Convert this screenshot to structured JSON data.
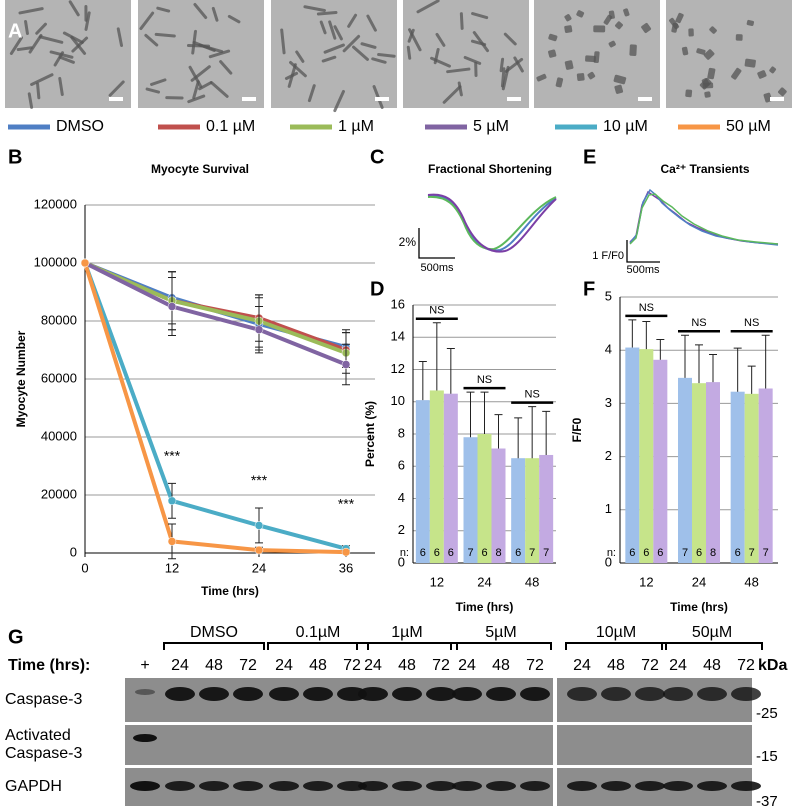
{
  "panel_labels": [
    "A",
    "B",
    "C",
    "D",
    "E",
    "F",
    "G"
  ],
  "chart_data": [
    {
      "type": "line",
      "title": "Myocyte Survival",
      "xlabel": "Time (hrs)",
      "ylabel": "Myocyte Number",
      "x": [
        0,
        12,
        24,
        36
      ],
      "xlim": [
        0,
        40
      ],
      "xticks": [
        0,
        12,
        24,
        36
      ],
      "ylim": [
        0,
        120000
      ],
      "yticks": [
        0,
        20000,
        40000,
        60000,
        80000,
        100000,
        120000
      ],
      "grid": true,
      "significance": [
        null,
        "***",
        "***",
        "***"
      ],
      "series": [
        {
          "name": "DMSO",
          "color": "#4f7fc4",
          "values": [
            100000,
            88000,
            79000,
            71000
          ],
          "errors": [
            0,
            9000,
            9000,
            6000
          ]
        },
        {
          "name": "0.1 µM",
          "color": "#c0504d",
          "values": [
            100000,
            87000,
            81000,
            70000
          ],
          "errors": [
            0,
            10000,
            8000,
            6000
          ]
        },
        {
          "name": "1 µM",
          "color": "#9bbb59",
          "values": [
            100000,
            87000,
            80000,
            69000
          ],
          "errors": [
            0,
            10000,
            9000,
            7000
          ]
        },
        {
          "name": "5 µM",
          "color": "#8064a2",
          "values": [
            100000,
            85000,
            77000,
            65000
          ],
          "errors": [
            0,
            10000,
            8000,
            7000
          ]
        },
        {
          "name": "10 µM",
          "color": "#4bacc6",
          "values": [
            100000,
            18000,
            9500,
            1500
          ],
          "errors": [
            0,
            6000,
            6000,
            1000
          ]
        },
        {
          "name": "50 µM",
          "color": "#f79646",
          "values": [
            100000,
            4000,
            1000,
            300
          ],
          "errors": [
            0,
            6000,
            1000,
            500
          ]
        }
      ]
    },
    {
      "type": "bar",
      "xlabel": "Time (hrs)",
      "ylabel": "Percent (%)",
      "n_label": "n:",
      "categories": [
        "12",
        "24",
        "48"
      ],
      "ylim": [
        0,
        16
      ],
      "yticks": [
        0,
        2,
        4,
        6,
        8,
        10,
        12,
        14,
        16
      ],
      "grid": true,
      "significance": [
        "NS",
        "NS",
        "NS"
      ],
      "series": [
        {
          "color": "#9fc0ea",
          "values": [
            10.1,
            7.8,
            6.5
          ],
          "errors": [
            2.4,
            2.8,
            2.5
          ],
          "n": [
            6,
            7,
            6
          ]
        },
        {
          "color": "#c6e48a",
          "values": [
            10.7,
            8.0,
            6.5
          ],
          "errors": [
            4.2,
            2.6,
            3.2
          ],
          "n": [
            6,
            6,
            7
          ]
        },
        {
          "color": "#c3aae2",
          "values": [
            10.5,
            7.1,
            6.7
          ],
          "errors": [
            2.8,
            2.1,
            2.7
          ],
          "n": [
            6,
            8,
            7
          ]
        }
      ]
    },
    {
      "type": "bar",
      "xlabel": "Time (hrs)",
      "ylabel": "F/F0",
      "n_label": "n:",
      "categories": [
        "12",
        "24",
        "48"
      ],
      "ylim": [
        0,
        5
      ],
      "yticks": [
        0,
        1,
        2,
        3,
        4,
        5
      ],
      "grid": true,
      "significance": [
        "NS",
        "NS",
        "NS"
      ],
      "series": [
        {
          "color": "#9fc0ea",
          "values": [
            4.05,
            3.48,
            3.22
          ],
          "errors": [
            0.52,
            0.8,
            0.82
          ],
          "n": [
            6,
            7,
            6
          ]
        },
        {
          "color": "#c6e48a",
          "values": [
            4.02,
            3.38,
            3.18
          ],
          "errors": [
            0.52,
            0.72,
            0.52
          ],
          "n": [
            6,
            6,
            7
          ]
        },
        {
          "color": "#c3aae2",
          "values": [
            3.82,
            3.4,
            3.28
          ],
          "errors": [
            0.38,
            0.52,
            1.0
          ],
          "n": [
            6,
            8,
            7
          ]
        }
      ]
    }
  ],
  "traces": [
    {
      "title": "Fractional Shortening",
      "scale_y": "2%",
      "scale_x": "500ms"
    },
    {
      "title": "Ca²⁺ Transients",
      "scale_y": "1 F/F0",
      "scale_x": "500ms"
    }
  ],
  "blot": {
    "time_label": "Time (hrs):",
    "positive_label": "+",
    "kda_label": "kDa",
    "groups": [
      {
        "label": "DMSO",
        "times": [
          24,
          48,
          72
        ]
      },
      {
        "label": "0.1µM",
        "times": [
          24,
          48,
          72
        ]
      },
      {
        "label": "1µM",
        "times": [
          24,
          48,
          72
        ]
      },
      {
        "label": "5µM",
        "times": [
          24,
          48,
          72
        ]
      },
      {
        "label": "10µM",
        "times": [
          24,
          48,
          72
        ]
      },
      {
        "label": "50µM",
        "times": [
          24,
          48,
          72
        ]
      }
    ],
    "rows": [
      {
        "label": [
          "Caspase-3"
        ],
        "marker": "-25"
      },
      {
        "label": [
          "Activated",
          "Caspase-3"
        ],
        "marker": "-15"
      },
      {
        "label": [
          "GAPDH"
        ],
        "marker": "-37"
      }
    ]
  }
}
